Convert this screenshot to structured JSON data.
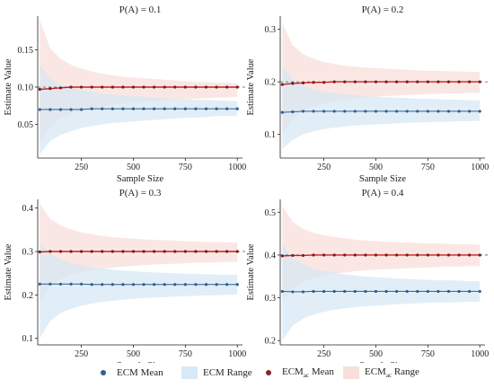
{
  "chart_data": [
    {
      "type": "line",
      "title": "P(A) = 0.1",
      "xlabel": "Sample Size",
      "ylabel": "Estimate Value",
      "x": [
        50,
        100,
        150,
        200,
        250,
        300,
        350,
        400,
        450,
        500,
        550,
        600,
        650,
        700,
        750,
        800,
        850,
        900,
        950,
        1000
      ],
      "xlim": [
        40,
        1025
      ],
      "ylim": [
        0.005,
        0.195
      ],
      "xticks": [
        250,
        500,
        750,
        1000
      ],
      "yticks": [
        0.05,
        0.1,
        0.15
      ],
      "ytick_labels": [
        "0.05",
        "0.10",
        "0.15"
      ],
      "reference_line": 0.1,
      "series": [
        {
          "name": "ECM Mean",
          "values": [
            0.07,
            0.07,
            0.07,
            0.07,
            0.07,
            0.071,
            0.071,
            0.071,
            0.071,
            0.071,
            0.071,
            0.071,
            0.071,
            0.071,
            0.071,
            0.071,
            0.071,
            0.071,
            0.071,
            0.071
          ],
          "range_low": [
            0.01,
            0.028,
            0.036,
            0.041,
            0.045,
            0.048,
            0.05,
            0.052,
            0.053,
            0.054,
            0.055,
            0.056,
            0.057,
            0.058,
            0.059,
            0.059,
            0.06,
            0.061,
            0.061,
            0.062
          ],
          "range_high": [
            0.13,
            0.112,
            0.104,
            0.099,
            0.096,
            0.094,
            0.092,
            0.09,
            0.089,
            0.088,
            0.087,
            0.086,
            0.085,
            0.084,
            0.084,
            0.083,
            0.083,
            0.082,
            0.082,
            0.081
          ]
        },
        {
          "name": "ECMac Mean",
          "values": [
            0.097,
            0.098,
            0.099,
            0.1,
            0.1,
            0.1,
            0.1,
            0.1,
            0.1,
            0.1,
            0.1,
            0.1,
            0.1,
            0.1,
            0.1,
            0.1,
            0.1,
            0.1,
            0.1,
            0.1
          ],
          "range_low": [
            0.025,
            0.046,
            0.058,
            0.064,
            0.068,
            0.071,
            0.074,
            0.076,
            0.078,
            0.079,
            0.08,
            0.081,
            0.082,
            0.083,
            0.084,
            0.084,
            0.085,
            0.086,
            0.086,
            0.087
          ],
          "range_high": [
            0.19,
            0.152,
            0.138,
            0.13,
            0.125,
            0.121,
            0.118,
            0.116,
            0.114,
            0.113,
            0.112,
            0.111,
            0.11,
            0.109,
            0.108,
            0.107,
            0.107,
            0.106,
            0.106,
            0.105
          ]
        }
      ]
    },
    {
      "type": "line",
      "title": "P(A) = 0.2",
      "xlabel": "Sample Size",
      "ylabel": "Estimate Value",
      "x": [
        50,
        100,
        150,
        200,
        250,
        300,
        350,
        400,
        450,
        500,
        550,
        600,
        650,
        700,
        750,
        800,
        850,
        900,
        950,
        1000
      ],
      "xlim": [
        40,
        1025
      ],
      "ylim": [
        0.055,
        0.325
      ],
      "xticks": [
        250,
        500,
        750,
        1000
      ],
      "yticks": [
        0.1,
        0.2,
        0.3
      ],
      "ytick_labels": [
        "0.1",
        "0.2",
        "0.3"
      ],
      "reference_line": 0.2,
      "series": [
        {
          "name": "ECM Mean",
          "values": [
            0.142,
            0.143,
            0.144,
            0.144,
            0.144,
            0.144,
            0.144,
            0.144,
            0.144,
            0.144,
            0.144,
            0.144,
            0.144,
            0.144,
            0.144,
            0.144,
            0.144,
            0.144,
            0.144,
            0.144
          ],
          "range_low": [
            0.072,
            0.09,
            0.1,
            0.106,
            0.11,
            0.113,
            0.115,
            0.117,
            0.118,
            0.119,
            0.12,
            0.121,
            0.122,
            0.123,
            0.123,
            0.124,
            0.124,
            0.125,
            0.125,
            0.126
          ],
          "range_high": [
            0.23,
            0.205,
            0.193,
            0.186,
            0.182,
            0.179,
            0.177,
            0.175,
            0.173,
            0.172,
            0.171,
            0.17,
            0.169,
            0.168,
            0.168,
            0.167,
            0.166,
            0.166,
            0.165,
            0.165
          ]
        },
        {
          "name": "ECMac Mean",
          "values": [
            0.195,
            0.197,
            0.198,
            0.199,
            0.199,
            0.2,
            0.2,
            0.2,
            0.2,
            0.2,
            0.2,
            0.2,
            0.2,
            0.2,
            0.2,
            0.2,
            0.2,
            0.2,
            0.2,
            0.2
          ],
          "range_low": [
            0.1,
            0.13,
            0.145,
            0.153,
            0.159,
            0.163,
            0.166,
            0.168,
            0.17,
            0.172,
            0.173,
            0.174,
            0.175,
            0.176,
            0.177,
            0.177,
            0.178,
            0.178,
            0.179,
            0.179
          ],
          "range_high": [
            0.312,
            0.27,
            0.253,
            0.244,
            0.238,
            0.234,
            0.231,
            0.229,
            0.227,
            0.226,
            0.225,
            0.224,
            0.223,
            0.222,
            0.221,
            0.221,
            0.22,
            0.22,
            0.219,
            0.219
          ]
        }
      ]
    },
    {
      "type": "line",
      "title": "P(A) = 0.3",
      "xlabel": "Sample Size",
      "ylabel": "Estimate Value",
      "x": [
        50,
        100,
        150,
        200,
        250,
        300,
        350,
        400,
        450,
        500,
        550,
        600,
        650,
        700,
        750,
        800,
        850,
        900,
        950,
        1000
      ],
      "xlim": [
        40,
        1025
      ],
      "ylim": [
        0.085,
        0.42
      ],
      "xticks": [
        250,
        500,
        750,
        1000
      ],
      "yticks": [
        0.1,
        0.2,
        0.3,
        0.4
      ],
      "ytick_labels": [
        "0.1",
        "0.2",
        "0.3",
        "0.4"
      ],
      "reference_line": 0.3,
      "series": [
        {
          "name": "ECM Mean",
          "values": [
            0.225,
            0.225,
            0.225,
            0.225,
            0.225,
            0.224,
            0.224,
            0.224,
            0.224,
            0.224,
            0.224,
            0.224,
            0.224,
            0.224,
            0.224,
            0.224,
            0.224,
            0.224,
            0.224,
            0.224
          ],
          "range_low": [
            0.1,
            0.14,
            0.158,
            0.168,
            0.175,
            0.18,
            0.184,
            0.187,
            0.189,
            0.191,
            0.193,
            0.194,
            0.195,
            0.196,
            0.197,
            0.198,
            0.199,
            0.199,
            0.2,
            0.201
          ],
          "range_high": [
            0.32,
            0.295,
            0.282,
            0.274,
            0.268,
            0.264,
            0.261,
            0.258,
            0.256,
            0.255,
            0.253,
            0.252,
            0.251,
            0.25,
            0.249,
            0.249,
            0.248,
            0.247,
            0.247,
            0.246
          ]
        },
        {
          "name": "ECMac Mean",
          "values": [
            0.299,
            0.3,
            0.3,
            0.3,
            0.3,
            0.3,
            0.3,
            0.3,
            0.3,
            0.3,
            0.3,
            0.3,
            0.3,
            0.3,
            0.3,
            0.3,
            0.3,
            0.3,
            0.3,
            0.3
          ],
          "range_low": [
            0.185,
            0.22,
            0.236,
            0.245,
            0.252,
            0.257,
            0.26,
            0.263,
            0.265,
            0.267,
            0.268,
            0.27,
            0.271,
            0.272,
            0.273,
            0.274,
            0.274,
            0.275,
            0.276,
            0.276
          ],
          "range_high": [
            0.41,
            0.375,
            0.36,
            0.351,
            0.344,
            0.34,
            0.336,
            0.333,
            0.331,
            0.33,
            0.328,
            0.327,
            0.326,
            0.325,
            0.324,
            0.323,
            0.322,
            0.322,
            0.321,
            0.321
          ]
        }
      ]
    },
    {
      "type": "line",
      "title": "P(A) = 0.4",
      "xlabel": "Sample Size",
      "ylabel": "Estimate Value",
      "x": [
        50,
        100,
        150,
        200,
        250,
        300,
        350,
        400,
        450,
        500,
        550,
        600,
        650,
        700,
        750,
        800,
        850,
        900,
        950,
        1000
      ],
      "xlim": [
        40,
        1025
      ],
      "ylim": [
        0.19,
        0.53
      ],
      "xticks": [
        250,
        500,
        750,
        1000
      ],
      "yticks": [
        0.2,
        0.3,
        0.4,
        0.5
      ],
      "ytick_labels": [
        "0.2",
        "0.3",
        "0.4",
        "0.5"
      ],
      "reference_line": 0.4,
      "series": [
        {
          "name": "ECM Mean",
          "values": [
            0.315,
            0.314,
            0.314,
            0.315,
            0.315,
            0.315,
            0.315,
            0.315,
            0.315,
            0.315,
            0.315,
            0.315,
            0.315,
            0.315,
            0.315,
            0.315,
            0.315,
            0.315,
            0.315,
            0.315
          ],
          "range_low": [
            0.2,
            0.235,
            0.251,
            0.261,
            0.267,
            0.272,
            0.275,
            0.278,
            0.28,
            0.282,
            0.283,
            0.285,
            0.286,
            0.287,
            0.288,
            0.289,
            0.289,
            0.29,
            0.291,
            0.291
          ],
          "range_high": [
            0.425,
            0.392,
            0.378,
            0.369,
            0.363,
            0.359,
            0.355,
            0.352,
            0.35,
            0.348,
            0.347,
            0.345,
            0.344,
            0.343,
            0.342,
            0.341,
            0.341,
            0.34,
            0.339,
            0.339
          ]
        },
        {
          "name": "ECMac Mean",
          "values": [
            0.398,
            0.399,
            0.399,
            0.4,
            0.4,
            0.4,
            0.4,
            0.4,
            0.4,
            0.4,
            0.4,
            0.4,
            0.4,
            0.4,
            0.4,
            0.4,
            0.4,
            0.4,
            0.4,
            0.4
          ],
          "range_low": [
            0.29,
            0.322,
            0.337,
            0.346,
            0.352,
            0.356,
            0.359,
            0.362,
            0.364,
            0.366,
            0.367,
            0.368,
            0.369,
            0.37,
            0.371,
            0.372,
            0.373,
            0.373,
            0.374,
            0.374
          ],
          "range_high": [
            0.515,
            0.477,
            0.461,
            0.452,
            0.446,
            0.442,
            0.439,
            0.436,
            0.434,
            0.433,
            0.431,
            0.43,
            0.429,
            0.428,
            0.427,
            0.427,
            0.426,
            0.425,
            0.425,
            0.424
          ]
        }
      ]
    }
  ],
  "legend": {
    "position": "bottom",
    "items": [
      {
        "kind": "mean",
        "label": "ECM Mean",
        "color": "#2e5f8f"
      },
      {
        "kind": "range",
        "label": "ECM Range",
        "color": "#d9e9f5"
      },
      {
        "kind": "mean",
        "label": "ECM",
        "sub": "ac",
        "suffix": " Mean",
        "color": "#7a2a2a"
      },
      {
        "kind": "range",
        "label": "ECM",
        "sub": "ac",
        "suffix": " Range",
        "color": "#f7e0dc"
      }
    ]
  },
  "colors": {
    "ecm_line": "#2e5f8f",
    "ecm_band": "#d6e7f4",
    "ecmac_line": "#cc1f1f",
    "ecmac_marker": "#6b2222",
    "ecmac_band": "#f8ddd8",
    "reference": "#555555"
  }
}
